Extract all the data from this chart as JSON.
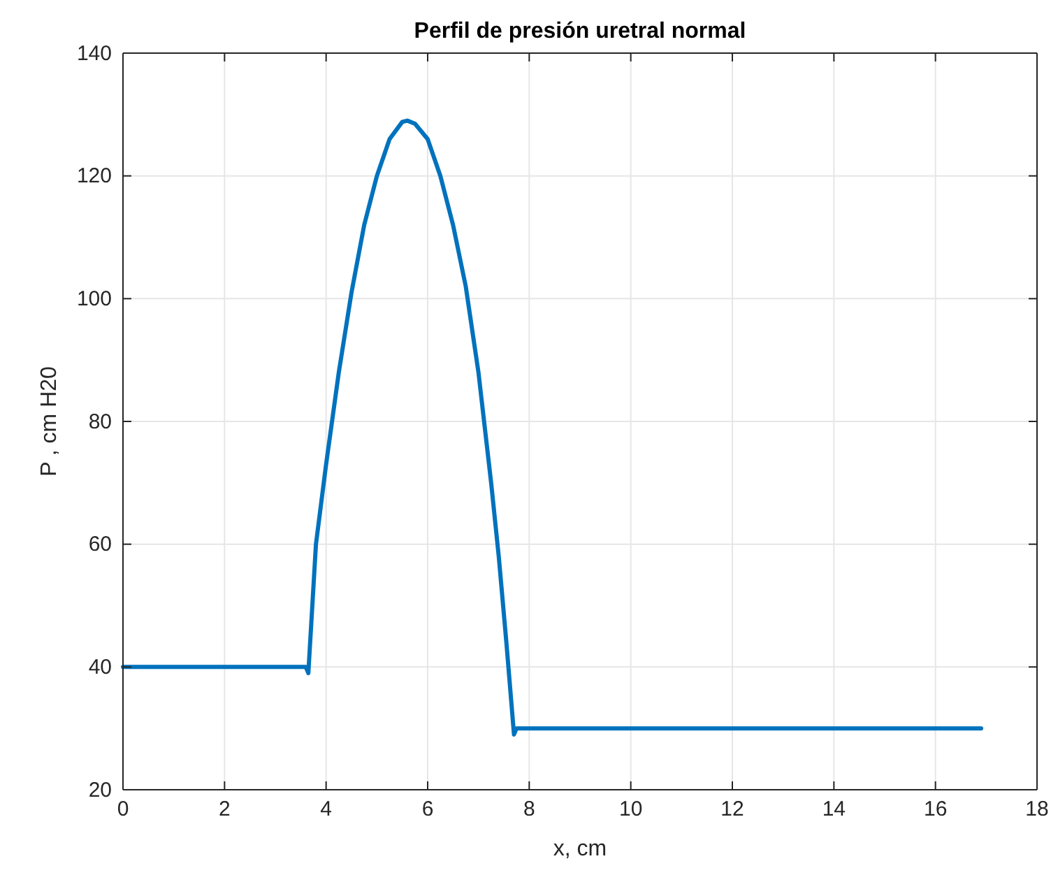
{
  "chart_data": {
    "type": "line",
    "title": "Perfil de presión uretral normal",
    "xlabel": "x, cm",
    "ylabel": "P , cm H20",
    "x": [
      0,
      3.6,
      3.65,
      3.8,
      4.0,
      4.25,
      4.5,
      4.75,
      5.0,
      5.25,
      5.5,
      5.6,
      5.75,
      6.0,
      6.25,
      6.5,
      6.75,
      7.0,
      7.25,
      7.4,
      7.55,
      7.7,
      7.75,
      16.9
    ],
    "series": [
      {
        "color": "#0072bd",
        "values": [
          40,
          40,
          39,
          60,
          73,
          88,
          101,
          112,
          120,
          126,
          128.8,
          129,
          128.5,
          126,
          120,
          112,
          102,
          88,
          70,
          58,
          44,
          29,
          30,
          30
        ]
      }
    ],
    "xlim": [
      0,
      18
    ],
    "xticks": [
      0,
      2,
      4,
      6,
      8,
      10,
      12,
      14,
      16,
      18
    ],
    "ylim": [
      20,
      140
    ],
    "yticks": [
      20,
      40,
      60,
      80,
      100,
      120,
      140
    ],
    "grid": true,
    "line_style": "solid"
  }
}
